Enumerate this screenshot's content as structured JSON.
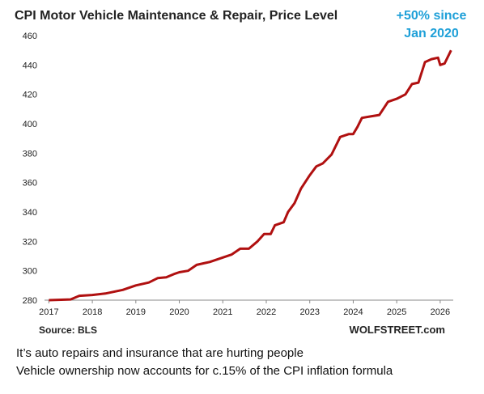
{
  "chart_data": {
    "type": "line",
    "title": "CPI Motor Vehicle Maintenance & Repair, Price Level",
    "annotation_lines": [
      "+50% since",
      "Jan 2020"
    ],
    "source": "Source: BLS",
    "watermark": "WOLFSTREET.com",
    "x": [
      2017.0,
      2017.5,
      2017.7,
      2018.0,
      2018.3,
      2018.7,
      2019.0,
      2019.3,
      2019.5,
      2019.7,
      2019.9,
      2020.0,
      2020.2,
      2020.4,
      2020.7,
      2021.0,
      2021.2,
      2021.4,
      2021.6,
      2021.8,
      2021.95,
      2022.1,
      2022.2,
      2022.4,
      2022.5,
      2022.65,
      2022.8,
      2023.0,
      2023.15,
      2023.3,
      2023.5,
      2023.7,
      2023.9,
      2024.0,
      2024.1,
      2024.2,
      2024.4,
      2024.6,
      2024.8,
      2025.0,
      2025.2,
      2025.35,
      2025.5,
      2025.65,
      2025.8,
      2025.95,
      2026.0,
      2026.1,
      2026.25
    ],
    "series": [
      {
        "name": "CPI Motor Vehicle Maintenance & Repair",
        "color": "#b01010",
        "values": [
          280,
          280.5,
          283,
          283.5,
          284.5,
          287,
          290,
          292,
          295,
          295.5,
          298,
          299,
          300,
          304,
          306,
          309,
          311,
          315,
          315,
          320,
          325,
          325,
          331,
          333,
          340,
          346,
          356,
          365,
          371,
          373,
          379,
          391,
          393,
          393,
          398,
          404,
          405,
          406,
          415,
          417,
          420,
          427,
          428,
          442,
          444,
          445,
          440,
          441,
          450
        ]
      }
    ],
    "xlim": [
      2016.9,
      2026.3
    ],
    "xticks": [
      2017,
      2018,
      2019,
      2020,
      2021,
      2022,
      2023,
      2024,
      2025,
      2026
    ],
    "ylim": [
      280,
      460
    ],
    "yticks": [
      280,
      300,
      320,
      340,
      360,
      380,
      400,
      420,
      440,
      460
    ],
    "grid": false
  },
  "caption": {
    "lines": [
      "It’s auto repairs and insurance that are hurting people",
      "Vehicle ownership now accounts for c.15% of the CPI inflation formula"
    ]
  }
}
